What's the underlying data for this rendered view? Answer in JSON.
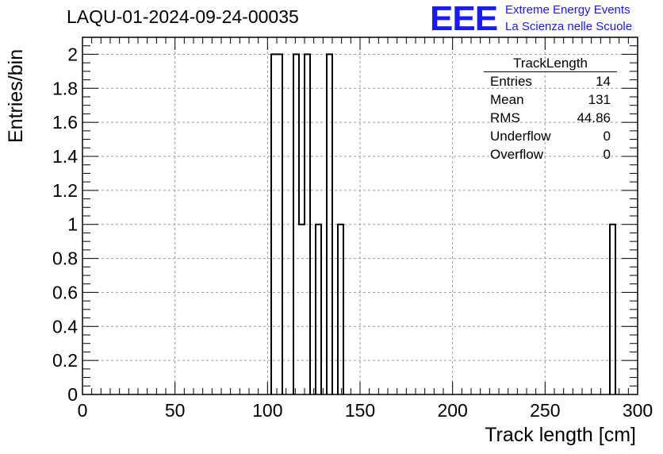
{
  "header": {
    "title": "LAQU-01-2024-09-24-00035",
    "logo_text": "EEE",
    "logo_line1": "Extreme Energy Events",
    "logo_line2": "La Scienza nelle Scuole"
  },
  "stats_box": {
    "title": "TrackLength",
    "rows": [
      {
        "label": "Entries",
        "value": "14"
      },
      {
        "label": "Mean",
        "value": "131"
      },
      {
        "label": "RMS",
        "value": "44.86"
      },
      {
        "label": "Underflow",
        "value": "0"
      },
      {
        "label": "Overflow",
        "value": "0"
      }
    ]
  },
  "chart_data": {
    "type": "bar",
    "xlabel": "Track length [cm]",
    "ylabel": "Entries/bin",
    "xlim": [
      0,
      300
    ],
    "ylim": [
      0,
      2.1
    ],
    "grid": true,
    "bin_width": 3,
    "x_ticks": [
      0,
      50,
      100,
      150,
      200,
      250,
      300
    ],
    "y_ticks": [
      0,
      0.2,
      0.4,
      0.6,
      0.8,
      1,
      1.2,
      1.4,
      1.6,
      1.8,
      2
    ],
    "x_tick_labels": [
      "0",
      "50",
      "100",
      "150",
      "200",
      "250",
      "300"
    ],
    "y_tick_labels": [
      "0",
      "0.2",
      "0.4",
      "0.6",
      "0.8",
      "1",
      "1.2",
      "1.4",
      "1.6",
      "1.8",
      "2"
    ],
    "bins": [
      {
        "x0": 102,
        "x1": 108,
        "value": 2
      },
      {
        "x0": 114,
        "x1": 117,
        "value": 2
      },
      {
        "x0": 117,
        "x1": 120,
        "value": 1
      },
      {
        "x0": 120,
        "x1": 123,
        "value": 2
      },
      {
        "x0": 126,
        "x1": 129,
        "value": 1
      },
      {
        "x0": 132,
        "x1": 135,
        "value": 2
      },
      {
        "x0": 138,
        "x1": 141,
        "value": 1
      },
      {
        "x0": 285,
        "x1": 288,
        "value": 1
      }
    ]
  }
}
